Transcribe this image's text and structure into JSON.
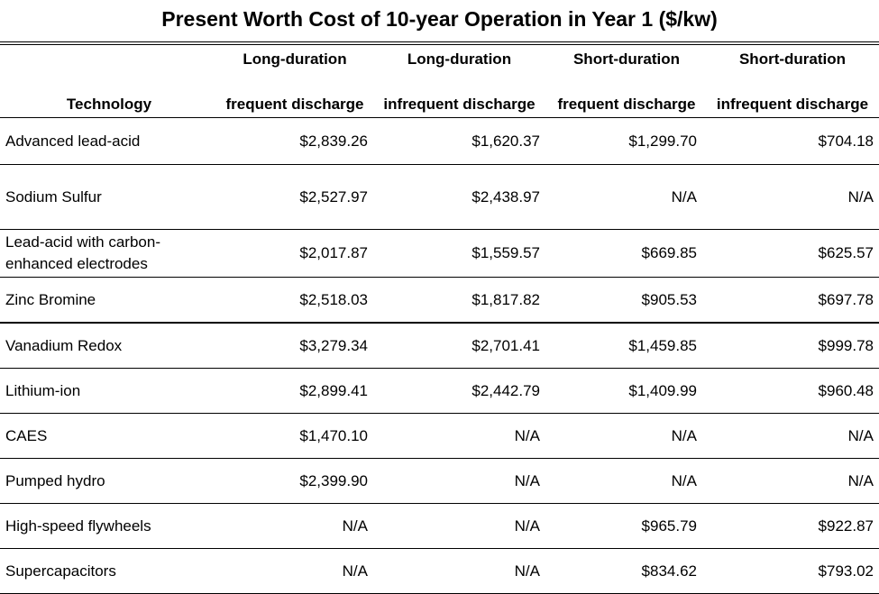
{
  "title": "Present Worth Cost of 10-year Operation in Year 1 ($/kw)",
  "headers": {
    "technology": "Technology",
    "cols": [
      {
        "top": "Long-duration",
        "bottom": "frequent discharge"
      },
      {
        "top": "Long-duration",
        "bottom": "infrequent discharge"
      },
      {
        "top": "Short-duration",
        "bottom": "frequent discharge"
      },
      {
        "top": "Short-duration",
        "bottom": "infrequent discharge"
      }
    ]
  },
  "rows": [
    {
      "tech": "Advanced lead-acid",
      "v": [
        "$2,839.26",
        "$1,620.37",
        "$1,299.70",
        "$704.18"
      ]
    },
    {
      "tech": "Sodium Sulfur",
      "v": [
        "$2,527.97",
        "$2,438.97",
        "N/A",
        "N/A"
      ]
    },
    {
      "tech": "Lead-acid with carbon-enhanced electrodes",
      "v": [
        "$2,017.87",
        "$1,559.57",
        "$669.85",
        "$625.57"
      ]
    },
    {
      "tech": "Zinc Bromine",
      "v": [
        "$2,518.03",
        "$1,817.82",
        "$905.53",
        "$697.78"
      ]
    },
    {
      "tech": "Vanadium Redox",
      "v": [
        "$3,279.34",
        "$2,701.41",
        "$1,459.85",
        "$999.78"
      ]
    },
    {
      "tech": "Lithium-ion",
      "v": [
        "$2,899.41",
        "$2,442.79",
        "$1,409.99",
        "$960.48"
      ]
    },
    {
      "tech": "CAES",
      "v": [
        "$1,470.10",
        "N/A",
        "N/A",
        "N/A"
      ]
    },
    {
      "tech": "Pumped hydro",
      "v": [
        "$2,399.90",
        "N/A",
        "N/A",
        "N/A"
      ]
    },
    {
      "tech": "High-speed flywheels",
      "v": [
        "N/A",
        "N/A",
        "$965.79",
        "$922.87"
      ]
    },
    {
      "tech": "Supercapacitors",
      "v": [
        "N/A",
        "N/A",
        "$834.62",
        "$793.02"
      ]
    }
  ]
}
